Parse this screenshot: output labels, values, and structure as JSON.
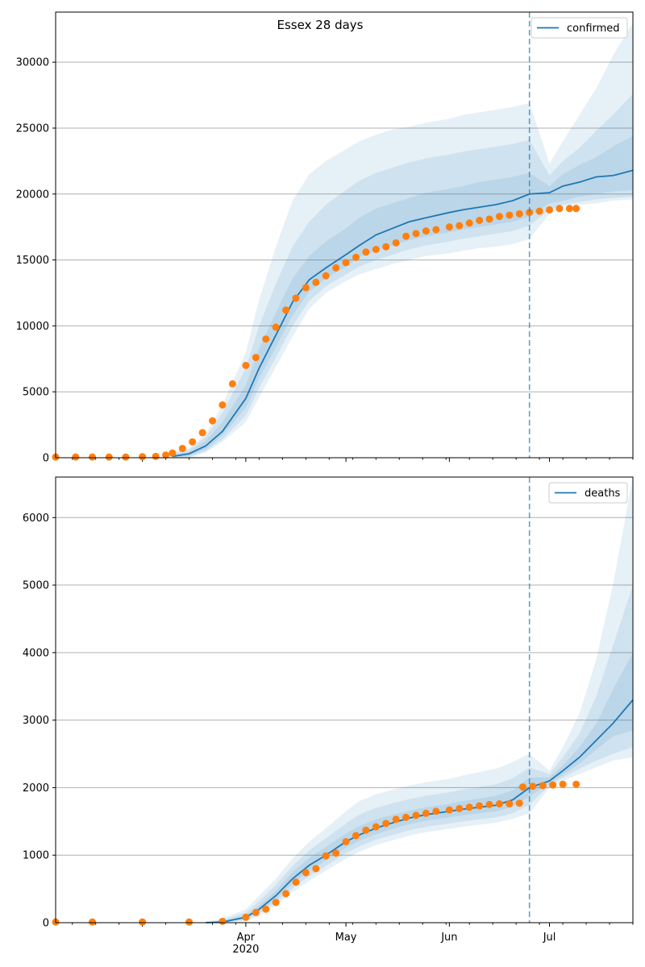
{
  "chart_data": [
    {
      "type": "line",
      "title": "Essex 28 days",
      "legend": [
        "confirmed"
      ],
      "legend_position": "top-right",
      "grid": "y",
      "ylim": [
        0,
        33800
      ],
      "xlim": [
        "2020-02-04",
        "2020-07-26"
      ],
      "yticks": [
        0,
        5000,
        10000,
        15000,
        20000,
        25000,
        30000
      ],
      "forecast_start": "2020-06-25",
      "colors": {
        "model": "#1f77b4",
        "observed": "#ff7f0e",
        "band": "#1f77b4"
      },
      "model": {
        "x": [
          "2020-03-10",
          "2020-03-15",
          "2020-03-20",
          "2020-03-25",
          "2020-04-01",
          "2020-04-05",
          "2020-04-10",
          "2020-04-15",
          "2020-04-20",
          "2020-04-25",
          "2020-05-01",
          "2020-05-05",
          "2020-05-10",
          "2020-05-15",
          "2020-05-20",
          "2020-05-25",
          "2020-06-01",
          "2020-06-05",
          "2020-06-10",
          "2020-06-15",
          "2020-06-20",
          "2020-06-25",
          "2020-07-01",
          "2020-07-05",
          "2020-07-10",
          "2020-07-15",
          "2020-07-20",
          "2020-07-26"
        ],
        "y": [
          100,
          300,
          900,
          2000,
          4500,
          6800,
          9300,
          11800,
          13500,
          14400,
          15400,
          16100,
          16900,
          17400,
          17900,
          18200,
          18600,
          18800,
          19000,
          19200,
          19500,
          20000,
          20100,
          20600,
          20900,
          21300,
          21400,
          21800
        ],
        "bands": [
          {
            "lower": [
              0,
              0,
              400,
              1200,
              2700,
              4600,
              6900,
              9200,
              11300,
              12500,
              13400,
              13900,
              14300,
              14700,
              15000,
              15300,
              15500,
              15700,
              15900,
              16000,
              16200,
              16600,
              18500,
              19000,
              19200,
              19300,
              19500,
              19600
            ],
            "upper": [
              500,
              700,
              1800,
              4000,
              8000,
              12000,
              16000,
              19500,
              21500,
              22500,
              23400,
              24000,
              24500,
              24900,
              25100,
              25400,
              25700,
              26000,
              26200,
              26400,
              26600,
              26900,
              22300,
              24000,
              26000,
              28000,
              30500,
              33000
            ]
          },
          {
            "lower": [
              20,
              60,
              500,
              1400,
              3200,
              5300,
              7600,
              10000,
              11900,
              13000,
              13900,
              14500,
              15000,
              15400,
              15800,
              16100,
              16400,
              16600,
              16800,
              17000,
              17200,
              17600,
              18800,
              19200,
              19400,
              19600,
              19700,
              19800
            ],
            "upper": [
              350,
              600,
              1600,
              3400,
              6800,
              10000,
              13200,
              16000,
              17900,
              19200,
              20300,
              21000,
              21600,
              22000,
              22400,
              22700,
              23000,
              23200,
              23400,
              23600,
              23800,
              24100,
              21400,
              22500,
              23500,
              24800,
              26000,
              27600
            ]
          },
          {
            "lower": [
              50,
              150,
              650,
              1700,
              3800,
              6000,
              8400,
              10800,
              12600,
              13600,
              14500,
              15200,
              15700,
              16100,
              16500,
              16800,
              17100,
              17300,
              17500,
              17700,
              17900,
              18300,
              19300,
              19500,
              19800,
              20000,
              20200,
              20300
            ],
            "upper": [
              200,
              450,
              1300,
              2700,
              5500,
              8300,
              11000,
              13600,
              15300,
              16400,
              17400,
              18200,
              18900,
              19300,
              19700,
              20100,
              20400,
              20600,
              20900,
              21100,
              21300,
              21600,
              20600,
              21500,
              22200,
              22800,
              23600,
              24400
            ]
          }
        ]
      },
      "observed": {
        "x": [
          "2020-02-04",
          "2020-02-10",
          "2020-02-15",
          "2020-02-20",
          "2020-02-25",
          "2020-03-01",
          "2020-03-05",
          "2020-03-08",
          "2020-03-10",
          "2020-03-13",
          "2020-03-16",
          "2020-03-19",
          "2020-03-22",
          "2020-03-25",
          "2020-03-28",
          "2020-04-01",
          "2020-04-04",
          "2020-04-07",
          "2020-04-10",
          "2020-04-13",
          "2020-04-16",
          "2020-04-19",
          "2020-04-22",
          "2020-04-25",
          "2020-04-28",
          "2020-05-01",
          "2020-05-04",
          "2020-05-07",
          "2020-05-10",
          "2020-05-13",
          "2020-05-16",
          "2020-05-19",
          "2020-05-22",
          "2020-05-25",
          "2020-05-28",
          "2020-06-01",
          "2020-06-04",
          "2020-06-07",
          "2020-06-10",
          "2020-06-13",
          "2020-06-16",
          "2020-06-19",
          "2020-06-22",
          "2020-06-25",
          "2020-06-28",
          "2020-07-01",
          "2020-07-04",
          "2020-07-07",
          "2020-07-09"
        ],
        "y": [
          50,
          50,
          50,
          50,
          50,
          80,
          100,
          200,
          350,
          700,
          1200,
          1900,
          2800,
          4000,
          5600,
          7000,
          7600,
          9000,
          9900,
          11200,
          12100,
          12900,
          13300,
          13800,
          14400,
          14800,
          15200,
          15600,
          15800,
          16000,
          16300,
          16800,
          17000,
          17200,
          17300,
          17500,
          17600,
          17800,
          18000,
          18100,
          18300,
          18400,
          18500,
          18600,
          18700,
          18800,
          18900,
          18900,
          18900
        ]
      },
      "y_data_range": [
        0,
        33800
      ]
    },
    {
      "type": "line",
      "title": "",
      "legend": [
        "deaths"
      ],
      "legend_position": "top-right",
      "grid": "y",
      "ylim": [
        0,
        6600
      ],
      "xlim": [
        "2020-02-04",
        "2020-07-26"
      ],
      "yticks": [
        0,
        1000,
        2000,
        3000,
        4000,
        5000,
        6000
      ],
      "xticks": [
        "Apr",
        "May",
        "Jun",
        "Jul"
      ],
      "xtick_dates": [
        "2020-04-01",
        "2020-05-01",
        "2020-06-01",
        "2020-07-01"
      ],
      "xtick_year": "2020",
      "forecast_start": "2020-06-25",
      "colors": {
        "model": "#1f77b4",
        "observed": "#ff7f0e",
        "band": "#1f77b4"
      },
      "model": {
        "x": [
          "2020-03-20",
          "2020-03-25",
          "2020-04-01",
          "2020-04-05",
          "2020-04-10",
          "2020-04-15",
          "2020-04-20",
          "2020-04-25",
          "2020-05-01",
          "2020-05-05",
          "2020-05-10",
          "2020-05-15",
          "2020-05-20",
          "2020-05-25",
          "2020-06-01",
          "2020-06-05",
          "2020-06-10",
          "2020-06-15",
          "2020-06-20",
          "2020-06-25",
          "2020-07-01",
          "2020-07-05",
          "2020-07-10",
          "2020-07-15",
          "2020-07-20",
          "2020-07-26"
        ],
        "y": [
          0,
          10,
          80,
          200,
          400,
          650,
          850,
          1000,
          1200,
          1300,
          1400,
          1480,
          1550,
          1600,
          1650,
          1680,
          1710,
          1740,
          1820,
          2000,
          2100,
          2250,
          2450,
          2700,
          2950,
          3300
        ],
        "bands": [
          {
            "lower": [
              0,
              0,
              20,
              100,
              250,
              450,
              620,
              770,
              950,
              1050,
              1150,
              1220,
              1290,
              1340,
              1390,
              1420,
              1450,
              1480,
              1540,
              1620,
              2000,
              2100,
              2200,
              2300,
              2400,
              2450
            ],
            "upper": [
              20,
              60,
              200,
              400,
              650,
              950,
              1200,
              1400,
              1650,
              1800,
              1900,
              1970,
              2030,
              2080,
              2130,
              2180,
              2230,
              2280,
              2380,
              2500,
              2250,
              2600,
              3100,
              3900,
              5000,
              6600
            ]
          },
          {
            "lower": [
              0,
              0,
              40,
              140,
              300,
              510,
              690,
              840,
              1030,
              1130,
              1230,
              1300,
              1370,
              1420,
              1470,
              1500,
              1530,
              1560,
              1620,
              1750,
              2030,
              2150,
              2280,
              2400,
              2500,
              2600
            ],
            "upper": [
              10,
              40,
              150,
              320,
              560,
              840,
              1070,
              1250,
              1470,
              1600,
              1700,
              1770,
              1830,
              1880,
              1930,
              1970,
              2010,
              2050,
              2140,
              2300,
              2200,
              2450,
              2800,
              3350,
              4100,
              5000
            ]
          },
          {
            "lower": [
              0,
              5,
              60,
              170,
              350,
              580,
              770,
              920,
              1110,
              1210,
              1310,
              1390,
              1460,
              1510,
              1560,
              1590,
              1620,
              1650,
              1720,
              1870,
              2060,
              2190,
              2360,
              2560,
              2760,
              2850
            ],
            "upper": [
              5,
              20,
              110,
              250,
              470,
              750,
              960,
              1120,
              1320,
              1430,
              1530,
              1600,
              1660,
              1710,
              1760,
              1800,
              1840,
              1880,
              1960,
              2150,
              2150,
              2330,
              2600,
              2950,
              3450,
              4000
            ]
          }
        ]
      },
      "observed": {
        "x": [
          "2020-02-04",
          "2020-02-15",
          "2020-03-01",
          "2020-03-15",
          "2020-03-25",
          "2020-04-01",
          "2020-04-04",
          "2020-04-07",
          "2020-04-10",
          "2020-04-13",
          "2020-04-16",
          "2020-04-19",
          "2020-04-22",
          "2020-04-25",
          "2020-04-28",
          "2020-05-01",
          "2020-05-04",
          "2020-05-07",
          "2020-05-10",
          "2020-05-13",
          "2020-05-16",
          "2020-05-19",
          "2020-05-22",
          "2020-05-25",
          "2020-05-28",
          "2020-06-01",
          "2020-06-04",
          "2020-06-07",
          "2020-06-10",
          "2020-06-13",
          "2020-06-16",
          "2020-06-19",
          "2020-06-22",
          "2020-06-23",
          "2020-06-26",
          "2020-06-29",
          "2020-07-02",
          "2020-07-05",
          "2020-07-09"
        ],
        "y": [
          10,
          10,
          10,
          10,
          20,
          80,
          150,
          200,
          300,
          430,
          600,
          740,
          800,
          990,
          1030,
          1200,
          1290,
          1370,
          1420,
          1470,
          1530,
          1560,
          1590,
          1620,
          1650,
          1670,
          1690,
          1710,
          1730,
          1750,
          1760,
          1760,
          1770,
          2010,
          2020,
          2030,
          2040,
          2050,
          2050
        ]
      }
    }
  ]
}
